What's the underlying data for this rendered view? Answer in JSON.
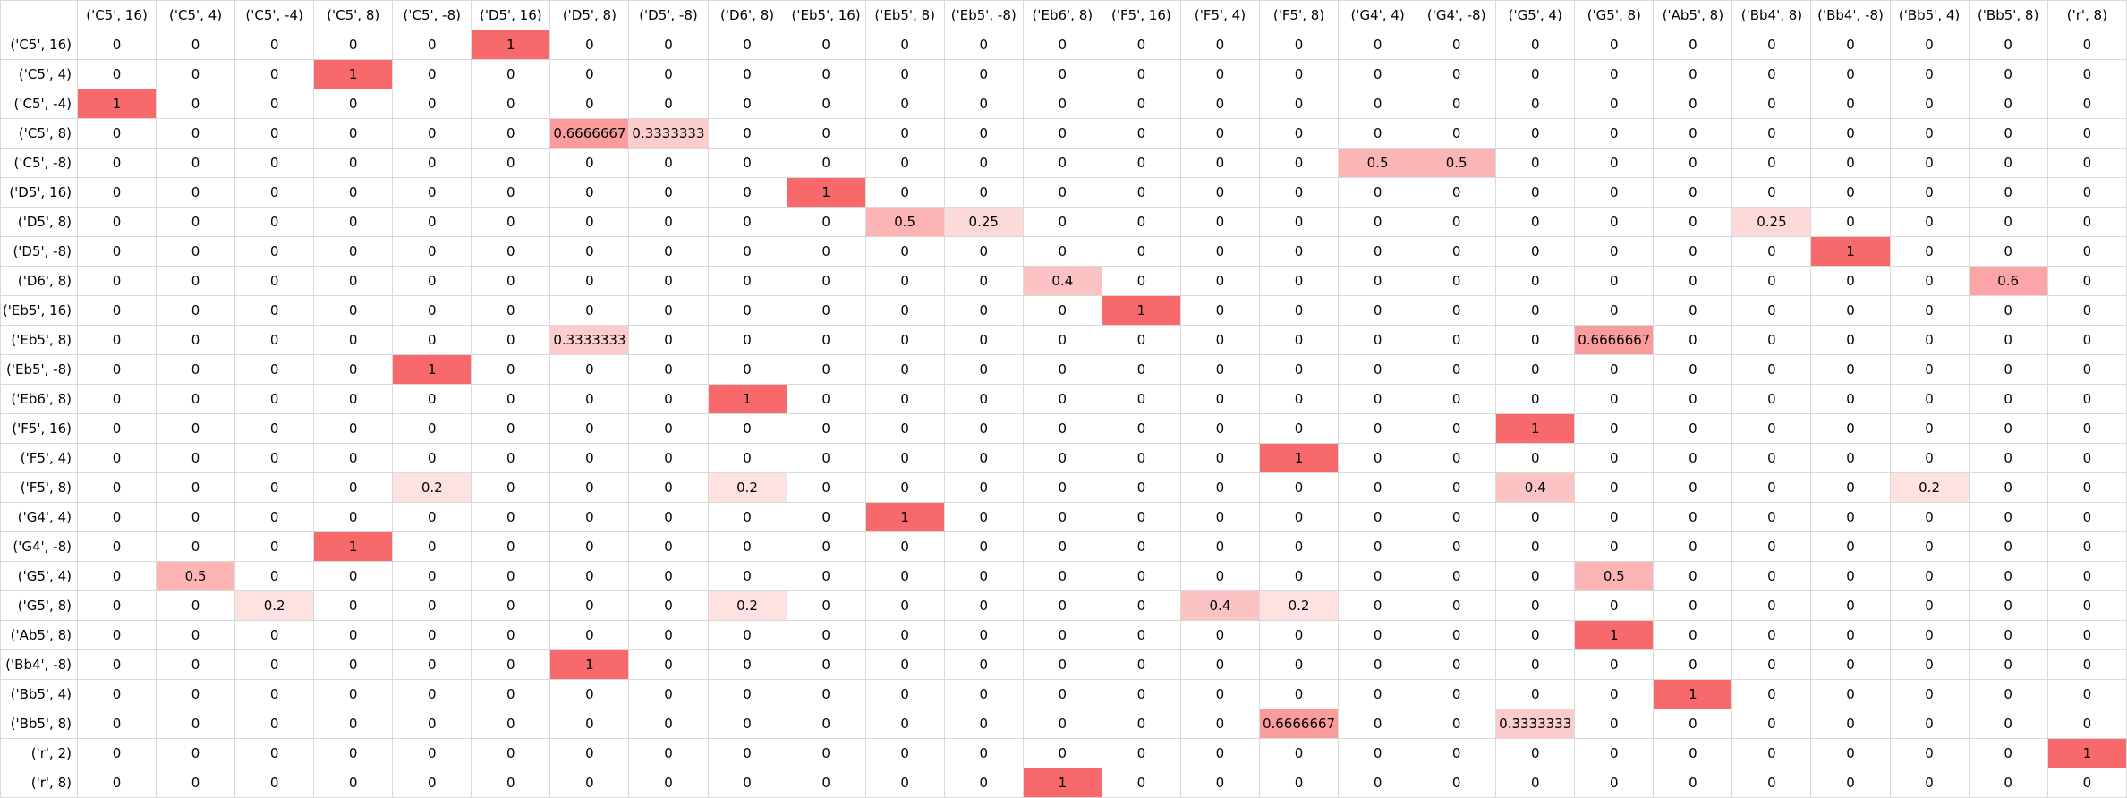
{
  "chart_data": {
    "type": "heatmap",
    "columns": [
      "('C5', 16)",
      "('C5', 4)",
      "('C5', -4)",
      "('C5', 8)",
      "('C5', -8)",
      "('D5', 16)",
      "('D5', 8)",
      "('D5', -8)",
      "('D6', 8)",
      "('Eb5', 16)",
      "('Eb5', 8)",
      "('Eb5', -8)",
      "('Eb6', 8)",
      "('F5', 16)",
      "('F5', 4)",
      "('F5', 8)",
      "('G4', 4)",
      "('G4', -8)",
      "('G5', 4)",
      "('G5', 8)",
      "('Ab5', 8)",
      "('Bb4', 8)",
      "('Bb4', -8)",
      "('Bb5', 4)",
      "('Bb5', 8)",
      "('r', 8)"
    ],
    "rows": [
      "('C5', 16)",
      "('C5', 4)",
      "('C5', -4)",
      "('C5', 8)",
      "('C5', -8)",
      "('D5', 16)",
      "('D5', 8)",
      "('D5', -8)",
      "('D6', 8)",
      "('Eb5', 16)",
      "('Eb5', 8)",
      "('Eb5', -8)",
      "('Eb6', 8)",
      "('F5', 16)",
      "('F5', 4)",
      "('F5', 8)",
      "('G4', 4)",
      "('G4', -8)",
      "('G5', 4)",
      "('G5', 8)",
      "('Ab5', 8)",
      "('Bb4', -8)",
      "('Bb5', 4)",
      "('Bb5', 8)",
      "('r', 2)",
      "('r', 8)"
    ],
    "values": [
      [
        "0",
        "0",
        "0",
        "0",
        "0",
        "1",
        "0",
        "0",
        "0",
        "0",
        "0",
        "0",
        "0",
        "0",
        "0",
        "0",
        "0",
        "0",
        "0",
        "0",
        "0",
        "0",
        "0",
        "0",
        "0",
        "0"
      ],
      [
        "0",
        "0",
        "0",
        "1",
        "0",
        "0",
        "0",
        "0",
        "0",
        "0",
        "0",
        "0",
        "0",
        "0",
        "0",
        "0",
        "0",
        "0",
        "0",
        "0",
        "0",
        "0",
        "0",
        "0",
        "0",
        "0"
      ],
      [
        "1",
        "0",
        "0",
        "0",
        "0",
        "0",
        "0",
        "0",
        "0",
        "0",
        "0",
        "0",
        "0",
        "0",
        "0",
        "0",
        "0",
        "0",
        "0",
        "0",
        "0",
        "0",
        "0",
        "0",
        "0",
        "0"
      ],
      [
        "0",
        "0",
        "0",
        "0",
        "0",
        "0",
        "0.6666667",
        "0.3333333",
        "0",
        "0",
        "0",
        "0",
        "0",
        "0",
        "0",
        "0",
        "0",
        "0",
        "0",
        "0",
        "0",
        "0",
        "0",
        "0",
        "0",
        "0"
      ],
      [
        "0",
        "0",
        "0",
        "0",
        "0",
        "0",
        "0",
        "0",
        "0",
        "0",
        "0",
        "0",
        "0",
        "0",
        "0",
        "0",
        "0.5",
        "0.5",
        "0",
        "0",
        "0",
        "0",
        "0",
        "0",
        "0",
        "0"
      ],
      [
        "0",
        "0",
        "0",
        "0",
        "0",
        "0",
        "0",
        "0",
        "0",
        "1",
        "0",
        "0",
        "0",
        "0",
        "0",
        "0",
        "0",
        "0",
        "0",
        "0",
        "0",
        "0",
        "0",
        "0",
        "0",
        "0"
      ],
      [
        "0",
        "0",
        "0",
        "0",
        "0",
        "0",
        "0",
        "0",
        "0",
        "0",
        "0.5",
        "0.25",
        "0",
        "0",
        "0",
        "0",
        "0",
        "0",
        "0",
        "0",
        "0",
        "0.25",
        "0",
        "0",
        "0",
        "0"
      ],
      [
        "0",
        "0",
        "0",
        "0",
        "0",
        "0",
        "0",
        "0",
        "0",
        "0",
        "0",
        "0",
        "0",
        "0",
        "0",
        "0",
        "0",
        "0",
        "0",
        "0",
        "0",
        "0",
        "1",
        "0",
        "0",
        "0"
      ],
      [
        "0",
        "0",
        "0",
        "0",
        "0",
        "0",
        "0",
        "0",
        "0",
        "0",
        "0",
        "0",
        "0.4",
        "0",
        "0",
        "0",
        "0",
        "0",
        "0",
        "0",
        "0",
        "0",
        "0",
        "0",
        "0.6",
        "0"
      ],
      [
        "0",
        "0",
        "0",
        "0",
        "0",
        "0",
        "0",
        "0",
        "0",
        "0",
        "0",
        "0",
        "0",
        "1",
        "0",
        "0",
        "0",
        "0",
        "0",
        "0",
        "0",
        "0",
        "0",
        "0",
        "0",
        "0"
      ],
      [
        "0",
        "0",
        "0",
        "0",
        "0",
        "0",
        "0.3333333",
        "0",
        "0",
        "0",
        "0",
        "0",
        "0",
        "0",
        "0",
        "0",
        "0",
        "0",
        "0",
        "0.6666667",
        "0",
        "0",
        "0",
        "0",
        "0",
        "0"
      ],
      [
        "0",
        "0",
        "0",
        "0",
        "1",
        "0",
        "0",
        "0",
        "0",
        "0",
        "0",
        "0",
        "0",
        "0",
        "0",
        "0",
        "0",
        "0",
        "0",
        "0",
        "0",
        "0",
        "0",
        "0",
        "0",
        "0"
      ],
      [
        "0",
        "0",
        "0",
        "0",
        "0",
        "0",
        "0",
        "0",
        "1",
        "0",
        "0",
        "0",
        "0",
        "0",
        "0",
        "0",
        "0",
        "0",
        "0",
        "0",
        "0",
        "0",
        "0",
        "0",
        "0",
        "0"
      ],
      [
        "0",
        "0",
        "0",
        "0",
        "0",
        "0",
        "0",
        "0",
        "0",
        "0",
        "0",
        "0",
        "0",
        "0",
        "0",
        "0",
        "0",
        "0",
        "1",
        "0",
        "0",
        "0",
        "0",
        "0",
        "0",
        "0"
      ],
      [
        "0",
        "0",
        "0",
        "0",
        "0",
        "0",
        "0",
        "0",
        "0",
        "0",
        "0",
        "0",
        "0",
        "0",
        "0",
        "1",
        "0",
        "0",
        "0",
        "0",
        "0",
        "0",
        "0",
        "0",
        "0",
        "0"
      ],
      [
        "0",
        "0",
        "0",
        "0",
        "0.2",
        "0",
        "0",
        "0",
        "0.2",
        "0",
        "0",
        "0",
        "0",
        "0",
        "0",
        "0",
        "0",
        "0",
        "0.4",
        "0",
        "0",
        "0",
        "0",
        "0.2",
        "0",
        "0"
      ],
      [
        "0",
        "0",
        "0",
        "0",
        "0",
        "0",
        "0",
        "0",
        "0",
        "0",
        "1",
        "0",
        "0",
        "0",
        "0",
        "0",
        "0",
        "0",
        "0",
        "0",
        "0",
        "0",
        "0",
        "0",
        "0",
        "0"
      ],
      [
        "0",
        "0",
        "0",
        "1",
        "0",
        "0",
        "0",
        "0",
        "0",
        "0",
        "0",
        "0",
        "0",
        "0",
        "0",
        "0",
        "0",
        "0",
        "0",
        "0",
        "0",
        "0",
        "0",
        "0",
        "0",
        "0"
      ],
      [
        "0",
        "0.5",
        "0",
        "0",
        "0",
        "0",
        "0",
        "0",
        "0",
        "0",
        "0",
        "0",
        "0",
        "0",
        "0",
        "0",
        "0",
        "0",
        "0",
        "0.5",
        "0",
        "0",
        "0",
        "0",
        "0",
        "0"
      ],
      [
        "0",
        "0",
        "0.2",
        "0",
        "0",
        "0",
        "0",
        "0",
        "0.2",
        "0",
        "0",
        "0",
        "0",
        "0",
        "0.4",
        "0.2",
        "0",
        "0",
        "0",
        "0",
        "0",
        "0",
        "0",
        "0",
        "0",
        "0"
      ],
      [
        "0",
        "0",
        "0",
        "0",
        "0",
        "0",
        "0",
        "0",
        "0",
        "0",
        "0",
        "0",
        "0",
        "0",
        "0",
        "0",
        "0",
        "0",
        "0",
        "1",
        "0",
        "0",
        "0",
        "0",
        "0",
        "0"
      ],
      [
        "0",
        "0",
        "0",
        "0",
        "0",
        "0",
        "1",
        "0",
        "0",
        "0",
        "0",
        "0",
        "0",
        "0",
        "0",
        "0",
        "0",
        "0",
        "0",
        "0",
        "0",
        "0",
        "0",
        "0",
        "0",
        "0"
      ],
      [
        "0",
        "0",
        "0",
        "0",
        "0",
        "0",
        "0",
        "0",
        "0",
        "0",
        "0",
        "0",
        "0",
        "0",
        "0",
        "0",
        "0",
        "0",
        "0",
        "0",
        "1",
        "0",
        "0",
        "0",
        "0",
        "0"
      ],
      [
        "0",
        "0",
        "0",
        "0",
        "0",
        "0",
        "0",
        "0",
        "0",
        "0",
        "0",
        "0",
        "0",
        "0",
        "0",
        "0.6666667",
        "0",
        "0",
        "0.3333333",
        "0",
        "0",
        "0",
        "0",
        "0",
        "0",
        "0"
      ],
      [
        "0",
        "0",
        "0",
        "0",
        "0",
        "0",
        "0",
        "0",
        "0",
        "0",
        "0",
        "0",
        "0",
        "0",
        "0",
        "0",
        "0",
        "0",
        "0",
        "0",
        "0",
        "0",
        "0",
        "0",
        "0",
        "1"
      ],
      [
        "0",
        "0",
        "0",
        "0",
        "0",
        "0",
        "0",
        "0",
        "0",
        "0",
        "0",
        "0",
        "1",
        "0",
        "0",
        "0",
        "0",
        "0",
        "0",
        "0",
        "0",
        "0",
        "0",
        "0",
        "0",
        "0"
      ]
    ],
    "color_low": "#ffffff",
    "color_high": "#f8696b",
    "grid": true
  }
}
